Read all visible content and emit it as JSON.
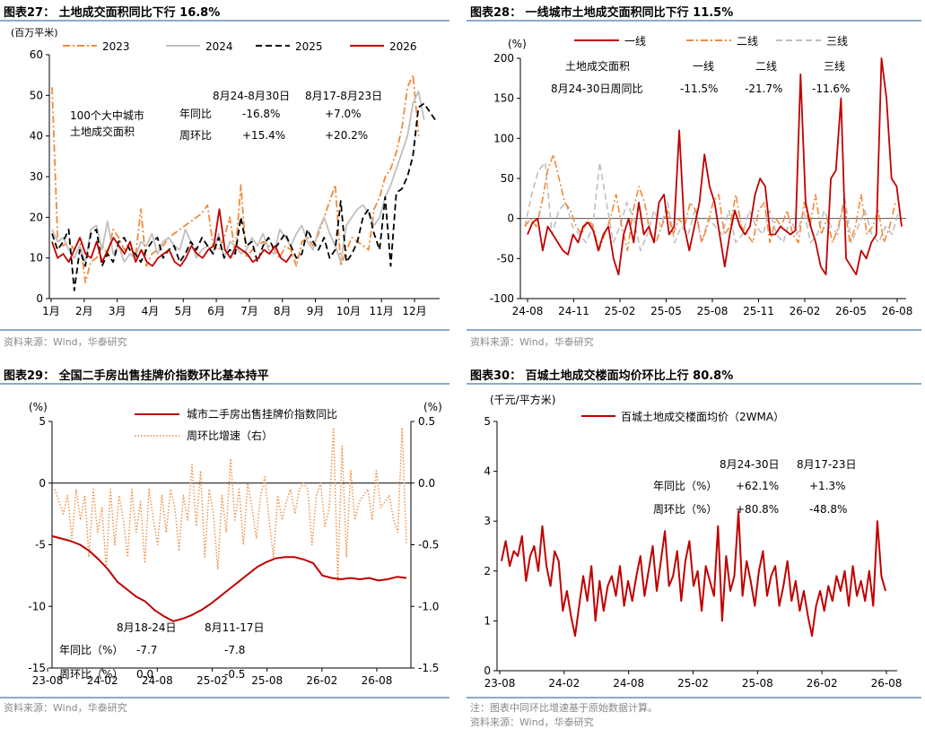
{
  "panels": {
    "p27": {
      "title": "图表27：  土地成交面积同比下行 16.8%",
      "source": "资料来源：Wind，华泰研究"
    },
    "p28": {
      "title": "图表28：  一线城市土地成交面积同比下行 11.5%",
      "source": "资料来源：Wind，华泰研究"
    },
    "p29": {
      "title": "图表29：  全国二手房出售挂牌价指数环比基本持平",
      "source": "资料来源：Wind，华泰研究"
    },
    "p30": {
      "title": "图表30：  百城土地成交楼面均价环比上行 80.8%",
      "note": "注：图表中同环比增速基于原始数据计算。",
      "source": "资料来源：Wind，华泰研究"
    }
  },
  "colors": {
    "red": "#c00000",
    "orange": "#f08a3c",
    "gray": "#bfbfbf",
    "black": "#000000",
    "axis": "#000000",
    "rule": "#8ea9c8"
  },
  "chart_data": [
    {
      "id": "p27",
      "type": "line",
      "ylabel": "(百万平米)",
      "ylim": [
        0,
        60
      ],
      "y_ticks": [
        "0",
        "10",
        "20",
        "30",
        "40",
        "50",
        "60"
      ],
      "x_ticks": [
        "1月",
        "2月",
        "3月",
        "4月",
        "5月",
        "6月",
        "7月",
        "8月",
        "9月",
        "10月",
        "11月",
        "12月"
      ],
      "x_unit": "week of year (1-52)",
      "legend_position": "top",
      "series": [
        {
          "name": "2023",
          "color": "orange",
          "style": "dashdot",
          "values": [
            52,
            15,
            13,
            14,
            12,
            15,
            4,
            9,
            10,
            13,
            11,
            17,
            15,
            12,
            13,
            10,
            22,
            8,
            11,
            12,
            13,
            15,
            16,
            17,
            18,
            19,
            20,
            21,
            23,
            13,
            12,
            15,
            20,
            11,
            28,
            10,
            12,
            13,
            14,
            13,
            12,
            10,
            13,
            12,
            8,
            14,
            15,
            13,
            16,
            20,
            24,
            28,
            8,
            12,
            15,
            14,
            13,
            12,
            22,
            25,
            30,
            32,
            36,
            42,
            52,
            55,
            40
          ]
        },
        {
          "name": "2024",
          "color": "gray",
          "style": "solid",
          "values": [
            17,
            14,
            15,
            12,
            10,
            13,
            9,
            17,
            18,
            12,
            19,
            11,
            13,
            9,
            11,
            10,
            14,
            13,
            16,
            11,
            14,
            15,
            13,
            12,
            17,
            14,
            10,
            12,
            13,
            11,
            16,
            10,
            14,
            13,
            11,
            12,
            15,
            13,
            16,
            12,
            11,
            17,
            15,
            13,
            16,
            18,
            14,
            12,
            17,
            20,
            16,
            13,
            9,
            18,
            20,
            22,
            23,
            21,
            18,
            20,
            25,
            28,
            32,
            36,
            40,
            48,
            51,
            44
          ]
        },
        {
          "name": "2025",
          "color": "black",
          "style": "dashed",
          "values": [
            16,
            12,
            14,
            17,
            2,
            12,
            8,
            16,
            17,
            8,
            11,
            9,
            14,
            15,
            12,
            11,
            9,
            12,
            14,
            15,
            10,
            12,
            13,
            9,
            11,
            14,
            12,
            15,
            13,
            11,
            15,
            10,
            12,
            11,
            20,
            13,
            14,
            9,
            13,
            15,
            12,
            14,
            16,
            13,
            10,
            11,
            17,
            14,
            12,
            15,
            10,
            12,
            24,
            9,
            11,
            14,
            20,
            22,
            16,
            12,
            25,
            8,
            26,
            27,
            30,
            35,
            47,
            48,
            46,
            44
          ]
        },
        {
          "name": "2026",
          "color": "red",
          "style": "solid",
          "values": [
            14,
            10,
            11,
            9,
            12,
            15,
            11,
            10,
            14,
            9,
            12,
            15,
            13,
            11,
            14,
            9,
            12,
            9,
            8,
            10,
            11,
            12,
            9,
            8,
            10,
            13,
            11,
            10,
            12,
            13,
            22,
            12,
            10,
            13,
            12,
            11,
            9,
            10,
            12,
            11,
            13,
            10,
            9,
            11
          ]
        }
      ],
      "annotations": {
        "left_label": [
          "100个大中城市",
          "土地成交面积"
        ],
        "col_headers": [
          "8月24-8月30日",
          "8月17-8月23日"
        ],
        "rows": [
          {
            "label": "年同比",
            "values": [
              "-16.8%",
              "+7.0%"
            ]
          },
          {
            "label": "周环比",
            "values": [
              "+15.4%",
              "+20.2%"
            ]
          }
        ]
      }
    },
    {
      "id": "p28",
      "type": "line",
      "ylabel": "(%)",
      "ylim": [
        -100,
        200
      ],
      "y_ticks": [
        "-100",
        "-50",
        "0",
        "50",
        "100",
        "150",
        "200"
      ],
      "x_ticks": [
        "24-08",
        "24-11",
        "25-02",
        "25-05",
        "25-08",
        "25-11",
        "26-02",
        "26-05",
        "26-08"
      ],
      "legend_position": "top",
      "series": [
        {
          "name": "一线",
          "color": "red",
          "style": "solid",
          "values": [
            -20,
            -5,
            0,
            -40,
            -10,
            -20,
            -30,
            -40,
            -45,
            -20,
            -30,
            -10,
            -5,
            -15,
            -40,
            -20,
            -10,
            -50,
            -70,
            -20,
            0,
            -30,
            20,
            -20,
            -10,
            -30,
            20,
            30,
            -20,
            -10,
            110,
            -10,
            -40,
            -10,
            20,
            80,
            40,
            20,
            -20,
            -60,
            -20,
            10,
            -10,
            -20,
            -10,
            30,
            50,
            40,
            -20,
            -20,
            -10,
            -15,
            -20,
            -15,
            180,
            20,
            -10,
            -30,
            -60,
            -70,
            50,
            60,
            150,
            -50,
            -60,
            -70,
            -40,
            -50,
            -30,
            -20,
            200,
            150,
            50,
            40,
            -10
          ]
        },
        {
          "name": "二线",
          "color": "orange",
          "style": "dashdot",
          "values": [
            -10,
            0,
            -10,
            20,
            60,
            80,
            50,
            20,
            10,
            -10,
            -20,
            0,
            -10,
            -40,
            -20,
            0,
            30,
            -10,
            -40,
            10,
            40,
            20,
            -20,
            -30,
            -10,
            10,
            -20,
            0,
            -10,
            20,
            10,
            -30,
            -10,
            20,
            30,
            -20,
            -10,
            30,
            -10,
            -20,
            -30,
            10,
            20,
            -30,
            0,
            -10,
            10,
            -20,
            -30,
            20,
            -10,
            30,
            -20,
            0,
            -30,
            -10,
            20,
            -30,
            -10,
            30,
            -20,
            -10,
            10,
            -30,
            -10,
            20
          ]
        },
        {
          "name": "三线",
          "color": "gray",
          "style": "dashed",
          "values": [
            -10,
            30,
            60,
            70,
            -20,
            10,
            20,
            -10,
            -20,
            -30,
            -10,
            70,
            20,
            -30,
            -10,
            20,
            0,
            -40,
            -20,
            10,
            -10,
            20,
            -30,
            -10,
            -20,
            10,
            -30,
            0,
            -10,
            -20,
            10,
            -30,
            -20,
            10,
            -10,
            -20,
            10,
            -20,
            -30,
            0,
            -20,
            10,
            -30,
            -20,
            10,
            -10,
            -20,
            30,
            -30,
            -10,
            10,
            -20,
            -30,
            -10,
            -20,
            10
          ]
        }
      ],
      "annotations": {
        "col_headers": [
          "土地成交面积",
          "一线",
          "二线",
          "三线"
        ],
        "rows": [
          {
            "label": "8月24-30日周同比",
            "values": [
              "-11.5%",
              "-21.7%",
              "-11.6%"
            ]
          }
        ]
      }
    },
    {
      "id": "p29",
      "type": "line",
      "ylabel_left": "(%)",
      "ylabel_right": "(%)",
      "ylim_left": [
        -15,
        5
      ],
      "ylim_right": [
        -1.5,
        0.5
      ],
      "y_ticks_left": [
        "-15",
        "-10",
        "-5",
        "0",
        "5"
      ],
      "y_ticks_right": [
        "-1.5",
        "-1.0",
        "-0.5",
        "0.0",
        "0.5"
      ],
      "x_ticks": [
        "23-08",
        "24-02",
        "24-08",
        "25-02",
        "25-08",
        "26-02",
        "26-08"
      ],
      "series": [
        {
          "name": "城市二手房出售挂牌价指数同比",
          "color": "red",
          "style": "solid",
          "axis": "left",
          "values": [
            -4.3,
            -4.5,
            -4.7,
            -5.0,
            -5.5,
            -6.2,
            -7.0,
            -8.0,
            -8.6,
            -9.2,
            -9.6,
            -10.3,
            -10.8,
            -11.2,
            -11.0,
            -10.7,
            -10.3,
            -9.8,
            -9.2,
            -8.6,
            -8.0,
            -7.4,
            -6.8,
            -6.4,
            -6.1,
            -6.0,
            -6.0,
            -6.2,
            -6.5,
            -7.5,
            -7.7,
            -7.8,
            -7.7,
            -7.8,
            -7.7,
            -7.9,
            -7.8,
            -7.6,
            -7.7
          ]
        },
        {
          "name": "周环比增速（右）",
          "color": "orange",
          "style": "dotted",
          "axis": "right",
          "values": [
            -0.05,
            -0.15,
            -0.25,
            -0.1,
            -0.45,
            -0.05,
            -0.3,
            -0.1,
            -0.6,
            -0.05,
            -0.4,
            -0.2,
            -0.7,
            -0.05,
            -0.5,
            -0.1,
            -0.3,
            -0.6,
            -0.05,
            -0.4,
            -0.15,
            -0.65,
            -0.05,
            -0.3,
            -0.5,
            -0.1,
            -0.4,
            -0.05,
            -0.2,
            -0.55,
            -0.1,
            -0.3,
            0.15,
            -0.35,
            0.1,
            -0.6,
            -0.05,
            -0.25,
            -0.7,
            -0.1,
            -0.4,
            0.2,
            -0.3,
            -0.05,
            -0.5,
            0.0,
            -0.2,
            -0.45,
            -0.1,
            0.05,
            -0.3,
            -0.6,
            -0.1,
            -0.3,
            -0.15,
            -0.05,
            -0.25,
            -0.05,
            0.0,
            -0.05,
            -0.5,
            -0.1,
            0.0,
            -0.35,
            -0.2,
            0.45,
            -0.8,
            0.3,
            -0.6,
            0.1,
            -0.3,
            -0.15,
            -0.1,
            -0.05,
            -0.3,
            0.1,
            -0.2,
            -0.15,
            -0.1,
            -0.3,
            -0.4,
            0.45,
            -0.5
          ]
        }
      ],
      "annotations": {
        "col_headers": [
          "8月18-24日",
          "8月11-17日"
        ],
        "rows": [
          {
            "label": "年同比（%）",
            "values": [
              "-7.7",
              "-7.8"
            ]
          },
          {
            "label": "周环比（%）",
            "values": [
              "0.0",
              "-0.5"
            ]
          }
        ]
      }
    },
    {
      "id": "p30",
      "type": "line",
      "ylabel": "(千元/平方米)",
      "ylim": [
        0,
        5
      ],
      "y_ticks": [
        "0",
        "1",
        "2",
        "3",
        "4",
        "5"
      ],
      "x_ticks": [
        "23-08",
        "24-02",
        "24-08",
        "25-02",
        "25-08",
        "26-02",
        "26-08"
      ],
      "legend_position": "top",
      "series": [
        {
          "name": "百城土地成交楼面均价（2WMA）",
          "color": "red",
          "style": "solid",
          "values": [
            2.2,
            2.6,
            2.1,
            2.4,
            2.3,
            2.7,
            1.8,
            2.3,
            2.5,
            2.0,
            2.9,
            2.1,
            1.7,
            2.4,
            2.2,
            1.2,
            1.6,
            1.1,
            0.7,
            1.3,
            1.9,
            1.4,
            2.1,
            1.0,
            1.8,
            1.2,
            1.7,
            1.9,
            1.5,
            2.1,
            1.3,
            1.8,
            1.4,
            1.9,
            2.3,
            1.5,
            2.0,
            2.5,
            1.6,
            2.2,
            2.8,
            1.7,
            1.9,
            2.4,
            1.4,
            2.2,
            2.6,
            1.7,
            2.0,
            1.2,
            2.1,
            1.8,
            1.5,
            2.9,
            1.0,
            2.3,
            1.6,
            1.9,
            3.2,
            1.5,
            2.2,
            1.8,
            1.3,
            2.0,
            2.4,
            1.5,
            1.9,
            2.1,
            1.3,
            1.7,
            2.2,
            1.4,
            1.8,
            1.2,
            1.6,
            1.1,
            0.7,
            1.3,
            1.6,
            1.2,
            1.7,
            1.4,
            1.9,
            1.6,
            2.0,
            1.3,
            2.1,
            1.5,
            1.8,
            1.4,
            2.0,
            1.3,
            3.0,
            1.9,
            1.6
          ]
        }
      ],
      "annotations": {
        "col_headers": [
          "8月24-30日",
          "8月17-23日"
        ],
        "rows": [
          {
            "label": "年同比（%）",
            "values": [
              "+62.1%",
              "+1.3%"
            ]
          },
          {
            "label": "周环比（%）",
            "values": [
              "+80.8%",
              "-48.8%"
            ]
          }
        ]
      }
    }
  ]
}
